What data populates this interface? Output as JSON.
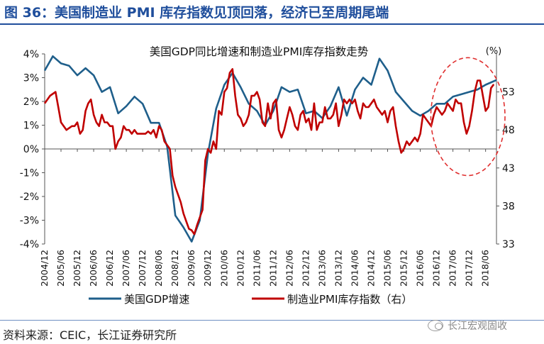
{
  "figure_title": "图 36：美国制造业 PMI 库存指数见顶回落，经济已至周期尾端",
  "source_note": "资料来源：CEIC，长江证券研究所",
  "watermark": {
    "icon": "wechat-icon",
    "text": "长江宏观固收"
  },
  "colors": {
    "title_blue": "#1f4e9c",
    "gdp_line": "#1f5f8b",
    "pmi_line": "#c00000",
    "highlight": "#e03030"
  },
  "chart_data": {
    "type": "line",
    "title": "美国GDP同比增速和制造业PMI库存指数走势",
    "right_axis_unit": "(%)",
    "ylim_left": [
      -4,
      4
    ],
    "ylim_right": [
      33,
      58
    ],
    "left_ticks": [
      "-4%",
      "-3%",
      "-2%",
      "-1%",
      "0%",
      "1%",
      "2%",
      "3%",
      "4%"
    ],
    "right_ticks": [
      "33",
      "38",
      "43",
      "48",
      "53"
    ],
    "x_ticks": [
      "2004/12",
      "2005/06",
      "2005/12",
      "2006/06",
      "2006/12",
      "2007/06",
      "2007/12",
      "2008/06",
      "2008/12",
      "2009/06",
      "2009/12",
      "2010/06",
      "2010/12",
      "2011/06",
      "2011/12",
      "2012/06",
      "2012/12",
      "2013/06",
      "2013/12",
      "2014/06",
      "2014/12",
      "2015/06",
      "2015/12",
      "2016/06",
      "2016/12",
      "2017/06",
      "2017/12",
      "2018/06"
    ],
    "x_range": [
      2004.917,
      2018.75
    ],
    "series": [
      {
        "name": "美国GDP增速",
        "axis": "left",
        "x": [
          2004.917,
          2005.167,
          2005.417,
          2005.667,
          2005.917,
          2006.167,
          2006.417,
          2006.667,
          2006.917,
          2007.167,
          2007.417,
          2007.667,
          2007.917,
          2008.167,
          2008.417,
          2008.667,
          2008.917,
          2009.167,
          2009.417,
          2009.667,
          2009.917,
          2010.167,
          2010.417,
          2010.667,
          2010.917,
          2011.167,
          2011.417,
          2011.667,
          2011.917,
          2012.167,
          2012.417,
          2012.667,
          2012.917,
          2013.167,
          2013.417,
          2013.667,
          2013.917,
          2014.167,
          2014.417,
          2014.667,
          2014.917,
          2015.167,
          2015.417,
          2015.667,
          2015.917,
          2016.167,
          2016.417,
          2016.667,
          2016.917,
          2017.167,
          2017.417,
          2017.667,
          2017.917,
          2018.167,
          2018.417,
          2018.75
        ],
        "values": [
          3.3,
          3.9,
          3.6,
          3.5,
          3.1,
          3.4,
          3.1,
          2.4,
          2.6,
          1.5,
          1.8,
          2.2,
          1.9,
          1.1,
          1.1,
          0.1,
          -2.8,
          -3.3,
          -3.9,
          -3.0,
          -0.2,
          1.7,
          2.7,
          3.2,
          2.6,
          1.9,
          1.6,
          1.0,
          1.6,
          2.6,
          2.4,
          2.5,
          1.5,
          1.6,
          1.3,
          1.8,
          2.6,
          1.4,
          2.5,
          3.0,
          2.7,
          3.8,
          3.3,
          2.4,
          2.0,
          1.6,
          1.4,
          1.6,
          1.9,
          1.9,
          2.2,
          2.3,
          2.4,
          2.5,
          2.7,
          2.9
        ]
      },
      {
        "name": "制造业PMI库存指数（右）",
        "axis": "right",
        "x": [
          2004.917,
          2005.083,
          2005.25,
          2005.333,
          2005.417,
          2005.583,
          2005.75,
          2005.833,
          2005.917,
          2006.0,
          2006.083,
          2006.167,
          2006.25,
          2006.333,
          2006.417,
          2006.5,
          2006.583,
          2006.667,
          2006.75,
          2006.833,
          2006.917,
          2007.0,
          2007.083,
          2007.167,
          2007.25,
          2007.333,
          2007.417,
          2007.5,
          2007.583,
          2007.667,
          2007.75,
          2007.833,
          2007.917,
          2008.0,
          2008.083,
          2008.167,
          2008.25,
          2008.333,
          2008.417,
          2008.5,
          2008.583,
          2008.667,
          2008.75,
          2008.833,
          2008.917,
          2009.0,
          2009.083,
          2009.167,
          2009.25,
          2009.333,
          2009.417,
          2009.5,
          2009.583,
          2009.667,
          2009.75,
          2009.833,
          2009.917,
          2010.0,
          2010.083,
          2010.167,
          2010.25,
          2010.333,
          2010.417,
          2010.5,
          2010.583,
          2010.667,
          2010.75,
          2010.833,
          2010.917,
          2011.0,
          2011.083,
          2011.167,
          2011.25,
          2011.333,
          2011.417,
          2011.5,
          2011.583,
          2011.667,
          2011.75,
          2011.833,
          2011.917,
          2012.0,
          2012.083,
          2012.167,
          2012.25,
          2012.333,
          2012.417,
          2012.5,
          2012.583,
          2012.667,
          2012.75,
          2012.833,
          2012.917,
          2013.0,
          2013.083,
          2013.167,
          2013.25,
          2013.333,
          2013.417,
          2013.5,
          2013.583,
          2013.667,
          2013.75,
          2013.833,
          2013.917,
          2014.0,
          2014.083,
          2014.167,
          2014.25,
          2014.333,
          2014.417,
          2014.5,
          2014.583,
          2014.667,
          2014.75,
          2014.833,
          2014.917,
          2015.0,
          2015.083,
          2015.167,
          2015.25,
          2015.333,
          2015.417,
          2015.5,
          2015.583,
          2015.667,
          2015.75,
          2015.833,
          2015.917,
          2016.0,
          2016.083,
          2016.167,
          2016.25,
          2016.333,
          2016.417,
          2016.5,
          2016.583,
          2016.667,
          2016.75,
          2016.833,
          2016.917,
          2017.0,
          2017.083,
          2017.167,
          2017.25,
          2017.333,
          2017.417,
          2017.5,
          2017.583,
          2017.667,
          2017.75,
          2017.833,
          2017.917,
          2018.0,
          2018.083,
          2018.167,
          2018.25,
          2018.333,
          2018.417,
          2018.5,
          2018.583,
          2018.667
        ],
        "values": [
          51.5,
          52.5,
          53.0,
          51.0,
          49.0,
          48.0,
          48.5,
          48.5,
          49.0,
          47.5,
          48.0,
          50.5,
          51.5,
          52.0,
          50.0,
          49.0,
          48.5,
          50.0,
          49.0,
          49.0,
          48.5,
          48.5,
          45.5,
          46.5,
          47.0,
          48.5,
          48.0,
          48.0,
          47.5,
          48.0,
          47.5,
          47.5,
          47.5,
          47.5,
          47.8,
          47.5,
          48.0,
          47.0,
          48.5,
          48.0,
          46.5,
          46.0,
          45.5,
          42.0,
          40.5,
          39.5,
          38.5,
          37.0,
          36.0,
          35.0,
          34.8,
          34.3,
          35.5,
          36.5,
          37.5,
          44.0,
          45.5,
          45.0,
          46.5,
          45.5,
          50.5,
          50.0,
          53.0,
          53.5,
          55.5,
          56.0,
          52.5,
          50.0,
          49.5,
          48.5,
          49.0,
          50.0,
          52.5,
          52.5,
          53.0,
          52.0,
          49.0,
          48.5,
          51.5,
          49.5,
          51.5,
          52.0,
          48.0,
          47.0,
          48.0,
          49.5,
          51.0,
          50.0,
          48.5,
          48.0,
          50.0,
          50.5,
          49.0,
          49.5,
          48.0,
          51.5,
          48.0,
          49.0,
          49.0,
          51.0,
          49.5,
          49.5,
          50.0,
          51.5,
          48.5,
          50.0,
          52.0,
          51.5,
          52.0,
          51.5,
          52.0,
          50.5,
          49.5,
          51.5,
          51.0,
          51.0,
          51.5,
          52.0,
          51.0,
          50.5,
          50.0,
          50.5,
          49.0,
          50.5,
          51.0,
          48.5,
          46.5,
          45.0,
          45.5,
          46.5,
          46.0,
          46.5,
          47.0,
          46.5,
          47.5,
          50.0,
          49.5,
          49.0,
          48.5,
          50.0,
          51.0,
          50.5,
          50.0,
          50.5,
          51.5,
          51.0,
          50.5,
          52.0,
          51.5,
          51.5,
          49.0,
          47.5,
          48.5,
          50.5,
          53.0,
          54.5,
          54.5,
          52.5,
          50.5,
          51.0,
          53.5,
          54.0
        ]
      }
    ],
    "highlight": {
      "shape": "ellipse",
      "style": "dashed",
      "x_range": [
        2017.0,
        2018.75
      ],
      "y_right_range": [
        42.0,
        57.5
      ]
    }
  }
}
